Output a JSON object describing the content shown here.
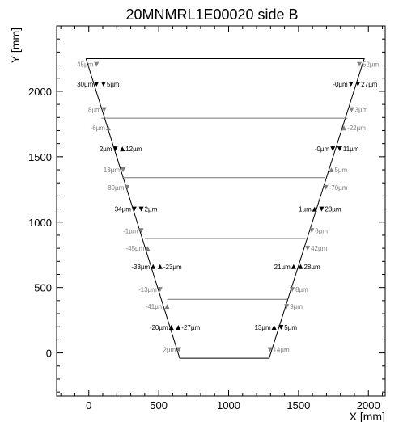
{
  "chart_data": {
    "type": "scatter",
    "title": "20MNMRL1E00020 side B",
    "xlabel": "X [mm]",
    "ylabel": "Y [mm]",
    "xlim": [
      -230,
      2120
    ],
    "ylim": [
      -330,
      2500
    ],
    "x_ticks": [
      0,
      500,
      1000,
      1500,
      2000
    ],
    "y_ticks": [
      0,
      500,
      1000,
      1500,
      2000
    ],
    "grid": false,
    "colors": {
      "axis": "#000000",
      "outline": "#000000",
      "horizontal": "#777777",
      "black": "#000000",
      "gray": "#7f7f7f"
    },
    "outline": {
      "polyline": [
        [
          -20,
          2250
        ],
        [
          1970,
          2250
        ],
        [
          1290,
          -40
        ],
        [
          650,
          -40
        ],
        [
          -20,
          2250
        ]
      ],
      "horizontal_lines": [
        [
          [
            90,
            1795
          ],
          [
            1850,
            1795
          ]
        ],
        [
          [
            240,
            1340
          ],
          [
            1690,
            1340
          ]
        ],
        [
          [
            400,
            875
          ],
          [
            1550,
            875
          ]
        ],
        [
          [
            560,
            410
          ],
          [
            1420,
            410
          ]
        ]
      ]
    },
    "points": [
      {
        "x": 55,
        "y": 2205,
        "dir": "down",
        "color": "gray",
        "label": "45µm",
        "side": "left"
      },
      {
        "x": 1935,
        "y": 2205,
        "dir": "down",
        "color": "gray",
        "label": "52µm",
        "side": "right"
      },
      {
        "x": 55,
        "y": 2055,
        "dir": "down",
        "color": "black",
        "label": "30µm",
        "side": "left"
      },
      {
        "x": 105,
        "y": 2055,
        "dir": "down",
        "color": "black",
        "label": "5µm",
        "side": "right"
      },
      {
        "x": 1875,
        "y": 2055,
        "dir": "down",
        "color": "black",
        "label": "-0µm",
        "side": "left"
      },
      {
        "x": 1925,
        "y": 2055,
        "dir": "down",
        "color": "black",
        "label": "27µm",
        "side": "right"
      },
      {
        "x": 110,
        "y": 1860,
        "dir": "down",
        "color": "gray",
        "label": "8µm",
        "side": "left"
      },
      {
        "x": 1880,
        "y": 1860,
        "dir": "down",
        "color": "gray",
        "label": "3µm",
        "side": "right"
      },
      {
        "x": 140,
        "y": 1720,
        "dir": "up",
        "color": "gray",
        "label": "-6µm",
        "side": "left"
      },
      {
        "x": 1825,
        "y": 1720,
        "dir": "up",
        "color": "gray",
        "label": "-22µm",
        "side": "right"
      },
      {
        "x": 190,
        "y": 1560,
        "dir": "down",
        "color": "black",
        "label": "2µm",
        "side": "left"
      },
      {
        "x": 240,
        "y": 1560,
        "dir": "up",
        "color": "black",
        "label": "12µm",
        "side": "right"
      },
      {
        "x": 1745,
        "y": 1560,
        "dir": "down",
        "color": "black",
        "label": "-0µm",
        "side": "left"
      },
      {
        "x": 1795,
        "y": 1560,
        "dir": "down",
        "color": "black",
        "label": "11µm",
        "side": "right"
      },
      {
        "x": 245,
        "y": 1400,
        "dir": "down",
        "color": "gray",
        "label": "13µm",
        "side": "left"
      },
      {
        "x": 1735,
        "y": 1400,
        "dir": "up",
        "color": "gray",
        "label": "5µm",
        "side": "right"
      },
      {
        "x": 275,
        "y": 1265,
        "dir": "down",
        "color": "gray",
        "label": "80µm",
        "side": "left"
      },
      {
        "x": 1695,
        "y": 1265,
        "dir": "down",
        "color": "gray",
        "label": "-70µm",
        "side": "right"
      },
      {
        "x": 325,
        "y": 1100,
        "dir": "down",
        "color": "black",
        "label": "34µm",
        "side": "left"
      },
      {
        "x": 375,
        "y": 1100,
        "dir": "down",
        "color": "black",
        "label": "2µm",
        "side": "right"
      },
      {
        "x": 1615,
        "y": 1100,
        "dir": "up",
        "color": "black",
        "label": "1µm",
        "side": "left"
      },
      {
        "x": 1665,
        "y": 1100,
        "dir": "down",
        "color": "black",
        "label": "23µm",
        "side": "right"
      },
      {
        "x": 375,
        "y": 935,
        "dir": "down",
        "color": "gray",
        "label": "-1µm",
        "side": "left"
      },
      {
        "x": 1595,
        "y": 935,
        "dir": "down",
        "color": "gray",
        "label": "6µm",
        "side": "right"
      },
      {
        "x": 420,
        "y": 800,
        "dir": "up",
        "color": "gray",
        "label": "-45µm",
        "side": "left"
      },
      {
        "x": 1565,
        "y": 800,
        "dir": "down",
        "color": "gray",
        "label": "42µm",
        "side": "right"
      },
      {
        "x": 460,
        "y": 660,
        "dir": "up",
        "color": "black",
        "label": "-33µm",
        "side": "left"
      },
      {
        "x": 510,
        "y": 660,
        "dir": "up",
        "color": "black",
        "label": "-23µm",
        "side": "right"
      },
      {
        "x": 1465,
        "y": 660,
        "dir": "up",
        "color": "black",
        "label": "21µm",
        "side": "left"
      },
      {
        "x": 1515,
        "y": 660,
        "dir": "up",
        "color": "black",
        "label": "28µm",
        "side": "right"
      },
      {
        "x": 510,
        "y": 485,
        "dir": "down",
        "color": "gray",
        "label": "-13µm",
        "side": "left"
      },
      {
        "x": 1455,
        "y": 485,
        "dir": "down",
        "color": "gray",
        "label": "8µm",
        "side": "right"
      },
      {
        "x": 560,
        "y": 355,
        "dir": "up",
        "color": "gray",
        "label": "-41µm",
        "side": "left"
      },
      {
        "x": 1415,
        "y": 355,
        "dir": "down",
        "color": "gray",
        "label": "9µm",
        "side": "right"
      },
      {
        "x": 590,
        "y": 195,
        "dir": "up",
        "color": "black",
        "label": "-20µm",
        "side": "left"
      },
      {
        "x": 640,
        "y": 195,
        "dir": "up",
        "color": "black",
        "label": "-27µm",
        "side": "right"
      },
      {
        "x": 1325,
        "y": 195,
        "dir": "up",
        "color": "black",
        "label": "13µm",
        "side": "left"
      },
      {
        "x": 1375,
        "y": 195,
        "dir": "down",
        "color": "black",
        "label": "5µm",
        "side": "right"
      },
      {
        "x": 645,
        "y": 25,
        "dir": "down",
        "color": "gray",
        "label": "2µm",
        "side": "left"
      },
      {
        "x": 1295,
        "y": 25,
        "dir": "down",
        "color": "gray",
        "label": "14µm",
        "side": "right"
      }
    ]
  }
}
